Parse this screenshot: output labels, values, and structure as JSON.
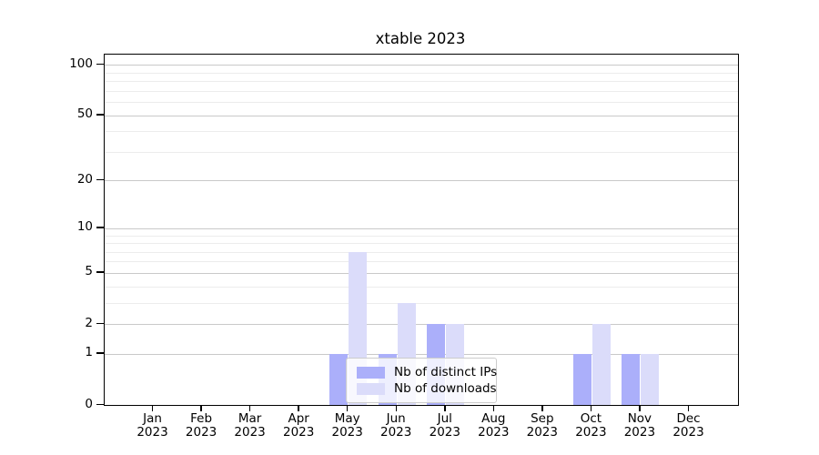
{
  "title": "xtable 2023",
  "chart_data": {
    "type": "bar",
    "title": "xtable 2023",
    "categories": [
      {
        "month": "Jan",
        "year": "2023"
      },
      {
        "month": "Feb",
        "year": "2023"
      },
      {
        "month": "Mar",
        "year": "2023"
      },
      {
        "month": "Apr",
        "year": "2023"
      },
      {
        "month": "May",
        "year": "2023"
      },
      {
        "month": "Jun",
        "year": "2023"
      },
      {
        "month": "Jul",
        "year": "2023"
      },
      {
        "month": "Aug",
        "year": "2023"
      },
      {
        "month": "Sep",
        "year": "2023"
      },
      {
        "month": "Oct",
        "year": "2023"
      },
      {
        "month": "Nov",
        "year": "2023"
      },
      {
        "month": "Dec",
        "year": "2023"
      }
    ],
    "series": [
      {
        "name": "Nb of distinct IPs",
        "color": "#abaffa",
        "values": [
          0,
          0,
          0,
          0,
          1,
          1,
          2,
          0,
          0,
          1,
          1,
          0
        ]
      },
      {
        "name": "Nb of downloads",
        "color": "#dbdcfa",
        "values": [
          0,
          0,
          0,
          0,
          7,
          3,
          2,
          0,
          0,
          2,
          1,
          0
        ]
      }
    ],
    "yaxis": {
      "scale": "log1p",
      "min": 0,
      "max": 115,
      "major_ticks": [
        100,
        50,
        20,
        10,
        5,
        2,
        1,
        0
      ],
      "minor_ticks": [
        3,
        4,
        6,
        7,
        8,
        9,
        30,
        40,
        60,
        70,
        80,
        90
      ]
    },
    "xlabel": "",
    "ylabel": "",
    "grid": true,
    "legend_position": "lower center"
  },
  "colors": {
    "axis": "#000000",
    "grid_major": "#c9c9c9",
    "grid_minor": "#ececec",
    "legend_border": "#cccccc",
    "background": "#ffffff"
  }
}
